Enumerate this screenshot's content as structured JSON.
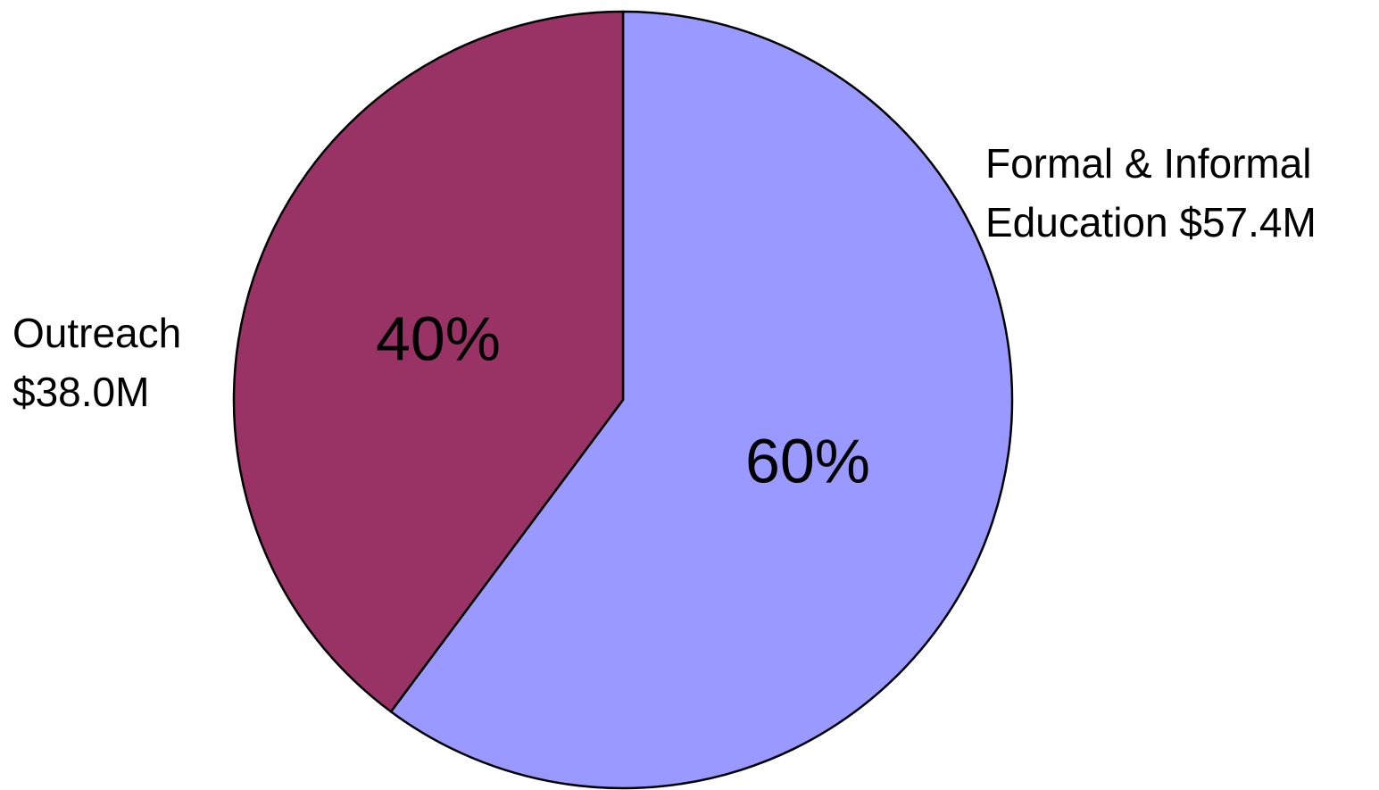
{
  "chart_data": {
    "type": "pie",
    "slices": [
      {
        "label_line1": "Formal & Informal",
        "label_line2": "Education $57.4M",
        "value": 57.4,
        "percent_label": "60%",
        "color": "#9999ff"
      },
      {
        "label_line1": "Outreach",
        "label_line2": "$38.0M",
        "value": 38.0,
        "percent_label": "40%",
        "color": "#993366"
      }
    ],
    "start_angle_deg": 0,
    "direction": "clockwise",
    "outline_color": "#000000"
  }
}
